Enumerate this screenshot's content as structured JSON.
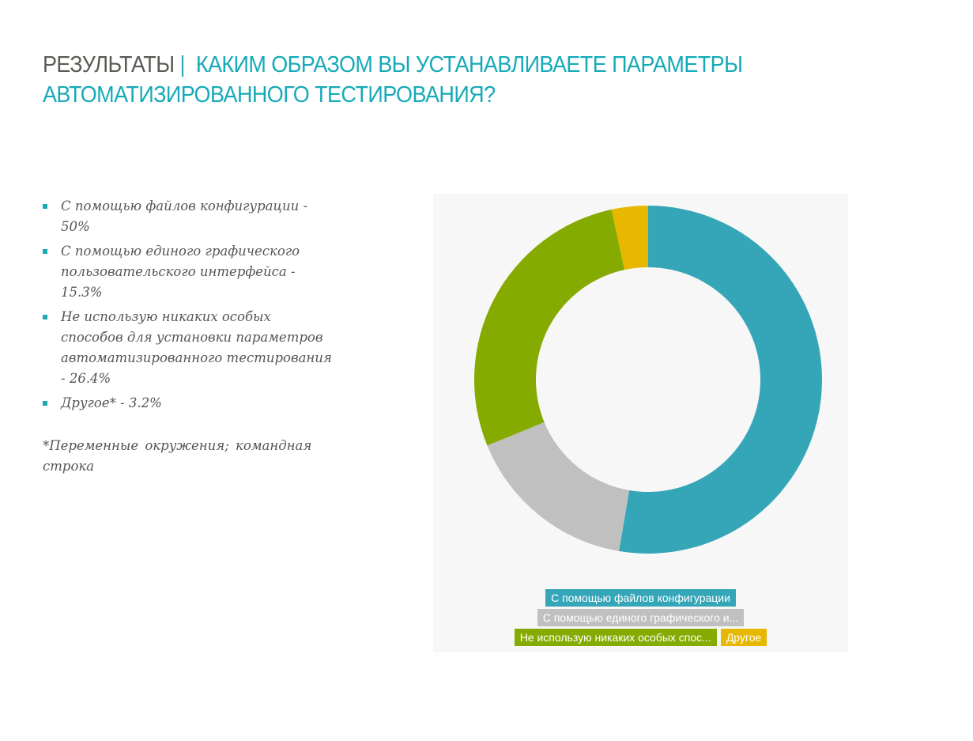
{
  "slide": {
    "title_prefix": "РЕЗУЛЬТАТЫ",
    "title_separator": "|",
    "title_question_line1": "КАКИМ ОБРАЗОМ ВЫ УСТАНАВЛИВАЕТЕ ПАРАМЕТРЫ",
    "title_question_line2": "АВТОМАТИЗИРОВАННОГО ТЕСТИРОВАНИЯ?",
    "bullets": [
      {
        "text": "С помощью файлов конфигурации - 50%"
      },
      {
        "text": "С помощью единого графического пользовательского интерфейса - 15.3%"
      },
      {
        "text": "Не использую никаких особых способов для установки параметров автоматизированного тестирования - 26.4%"
      },
      {
        "text": "Другое* - 3.2%"
      }
    ],
    "footnote": "*Переменные окружения; командная строка"
  },
  "colors": {
    "accent": "#15aab7",
    "title_gray": "#5a5a55",
    "panel_bg": "#f7f7f7"
  },
  "chart_data": {
    "type": "pie",
    "subtype": "donut",
    "title": "",
    "categories": [
      "С помощью файлов конфигурации",
      "С помощью единого графического пользовательского интерфейса",
      "Не использую никаких особых способов для установки параметров автоматизированного тестирования",
      "Другое"
    ],
    "values": [
      50,
      15.3,
      26.4,
      3.2
    ],
    "unit": "%",
    "colors": [
      "#35a6b8",
      "#c0c0c0",
      "#86ab00",
      "#e8b800"
    ],
    "start_angle": "12 o'clock, clockwise",
    "legend": {
      "position": "bottom",
      "entries": [
        {
          "label": "С помощью файлов конфигурации",
          "color": "#35a6b8"
        },
        {
          "label": "С помощью единого графического и...",
          "color": "#c0c0c0"
        },
        {
          "label": "Не использую никаких особых спос...",
          "color": "#86ab00"
        },
        {
          "label": "Другое",
          "color": "#e8b800"
        }
      ]
    }
  }
}
